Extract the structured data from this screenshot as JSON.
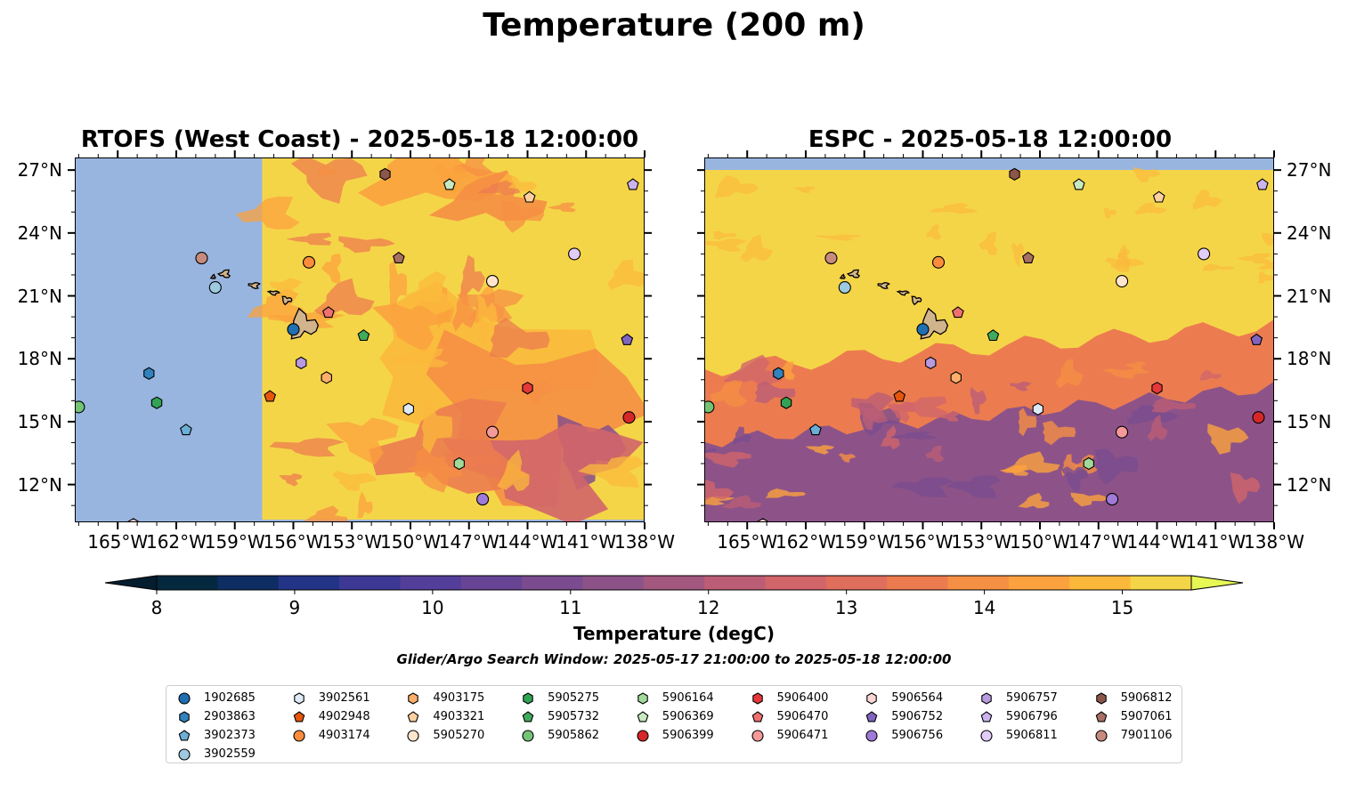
{
  "figure": {
    "title": "Temperature (200 m)",
    "window_text": "Glider/Argo Search Window: 2025-05-17 21:00:00 to 2025-05-18 12:00:00"
  },
  "panels": [
    {
      "title": "RTOFS (West Coast) - 2025-05-18 12:00:00",
      "model": "RTOFS"
    },
    {
      "title": "ESPC - 2025-05-18 12:00:00",
      "model": "ESPC"
    }
  ],
  "map_extent": {
    "lon": [
      -167.2,
      -138.0
    ],
    "lat": [
      10.2,
      27.6
    ]
  },
  "axes": {
    "lon_ticks": [
      "165°W",
      "162°W",
      "159°W",
      "156°W",
      "153°W",
      "150°W",
      "147°W",
      "144°W",
      "141°W",
      "138°W"
    ],
    "lon_values": [
      -165,
      -162,
      -159,
      -156,
      -153,
      -150,
      -147,
      -144,
      -141,
      -138
    ],
    "lat_ticks": [
      "27°N",
      "24°N",
      "21°N",
      "18°N",
      "15°N",
      "12°N"
    ],
    "lat_values": [
      27,
      24,
      21,
      18,
      15,
      12
    ]
  },
  "colorbar": {
    "label": "Temperature (degC)",
    "ticks": [
      "8",
      "9",
      "10",
      "11",
      "12",
      "13",
      "14",
      "15"
    ],
    "tick_values": [
      8,
      9,
      10,
      11,
      12,
      13,
      14,
      15
    ],
    "range": [
      8,
      15.5
    ],
    "colors": [
      "#04293f",
      "#0d2d63",
      "#233487",
      "#3c3893",
      "#533f99",
      "#684594",
      "#7a4c8f",
      "#8d5388",
      "#a3587f",
      "#bb5e75",
      "#d1656a",
      "#e06e5d",
      "#ec7c4f",
      "#f58f44",
      "#fba23e",
      "#fbb93c",
      "#f5d548"
    ],
    "extend_low": "#041e30",
    "extend_high": "#e7f855",
    "land_color": "#d2b48c",
    "nodata_color": "#98b5e0"
  },
  "legend": {
    "entries": [
      {
        "id": "1902685",
        "marker": "circle",
        "color": "#1f6fb2"
      },
      {
        "id": "2903863",
        "marker": "hexagon",
        "color": "#3182bd"
      },
      {
        "id": "3902373",
        "marker": "pentagon",
        "color": "#6baed6"
      },
      {
        "id": "3902559",
        "marker": "circle",
        "color": "#9ecae1"
      },
      {
        "id": "3902561",
        "marker": "hexagon",
        "color": "#deebf7"
      },
      {
        "id": "4902948",
        "marker": "pentagon",
        "color": "#e6550d"
      },
      {
        "id": "4903174",
        "marker": "circle",
        "color": "#fd8d3c"
      },
      {
        "id": "4903175",
        "marker": "hexagon",
        "color": "#fdae6b"
      },
      {
        "id": "4903321",
        "marker": "pentagon",
        "color": "#fdd0a2"
      },
      {
        "id": "5905270",
        "marker": "circle",
        "color": "#fee6ce"
      },
      {
        "id": "5905275",
        "marker": "hexagon",
        "color": "#31a354"
      },
      {
        "id": "5905732",
        "marker": "pentagon",
        "color": "#41ab5d"
      },
      {
        "id": "5905862",
        "marker": "circle",
        "color": "#74c476"
      },
      {
        "id": "5906164",
        "marker": "hexagon",
        "color": "#a1d99b"
      },
      {
        "id": "5906369",
        "marker": "pentagon",
        "color": "#c7e9c0"
      },
      {
        "id": "5906399",
        "marker": "circle",
        "color": "#d62728"
      },
      {
        "id": "5906400",
        "marker": "hexagon",
        "color": "#e6383a"
      },
      {
        "id": "5906470",
        "marker": "pentagon",
        "color": "#f07070"
      },
      {
        "id": "5906471",
        "marker": "circle",
        "color": "#f59a9a"
      },
      {
        "id": "5906564",
        "marker": "hexagon",
        "color": "#fcd5d5"
      },
      {
        "id": "5906752",
        "marker": "pentagon",
        "color": "#8065c0"
      },
      {
        "id": "5906756",
        "marker": "circle",
        "color": "#a07ad8"
      },
      {
        "id": "5906757",
        "marker": "hexagon",
        "color": "#b79ae0"
      },
      {
        "id": "5906796",
        "marker": "pentagon",
        "color": "#cbb4ee"
      },
      {
        "id": "5906811",
        "marker": "circle",
        "color": "#e2ccf8"
      },
      {
        "id": "5906812",
        "marker": "hexagon",
        "color": "#8c564b"
      },
      {
        "id": "5907061",
        "marker": "pentagon",
        "color": "#a87064"
      },
      {
        "id": "7901106",
        "marker": "circle",
        "color": "#c78b7e"
      }
    ]
  },
  "floats": [
    {
      "id": "1902685",
      "lon": -156.0,
      "lat": 19.4
    },
    {
      "id": "2903863",
      "lon": -163.4,
      "lat": 17.3
    },
    {
      "id": "3902373",
      "lon": -161.5,
      "lat": 14.6
    },
    {
      "id": "3902559",
      "lon": -160.0,
      "lat": 21.4
    },
    {
      "id": "3902561",
      "lon": -150.1,
      "lat": 15.6
    },
    {
      "id": "4902948",
      "lon": -157.2,
      "lat": 16.2
    },
    {
      "id": "4903174",
      "lon": -155.2,
      "lat": 22.6
    },
    {
      "id": "4903175",
      "lon": -154.3,
      "lat": 17.1
    },
    {
      "id": "4903321",
      "lon": -143.9,
      "lat": 25.7
    },
    {
      "id": "5905270",
      "lon": -145.8,
      "lat": 21.7
    },
    {
      "id": "5905275",
      "lon": -163.0,
      "lat": 15.9
    },
    {
      "id": "5905732",
      "lon": -152.4,
      "lat": 19.1
    },
    {
      "id": "5905862",
      "lon": -167.0,
      "lat": 15.7
    },
    {
      "id": "5906164",
      "lon": -147.5,
      "lat": 13.0
    },
    {
      "id": "5906369",
      "lon": -148.0,
      "lat": 26.3
    },
    {
      "id": "5906399",
      "lon": -138.8,
      "lat": 15.2
    },
    {
      "id": "5906400",
      "lon": -144.0,
      "lat": 16.6
    },
    {
      "id": "5906470",
      "lon": -154.2,
      "lat": 20.2
    },
    {
      "id": "5906471",
      "lon": -145.8,
      "lat": 14.5
    },
    {
      "id": "5906564",
      "lon": -164.2,
      "lat": 10.1
    },
    {
      "id": "5906752",
      "lon": -138.9,
      "lat": 18.9
    },
    {
      "id": "5906756",
      "lon": -146.3,
      "lat": 11.3
    },
    {
      "id": "5906757",
      "lon": -155.6,
      "lat": 17.8
    },
    {
      "id": "5906796",
      "lon": -138.6,
      "lat": 26.3
    },
    {
      "id": "5906811",
      "lon": -141.6,
      "lat": 23.0
    },
    {
      "id": "5906812",
      "lon": -151.3,
      "lat": 26.8
    },
    {
      "id": "5907061",
      "lon": -150.6,
      "lat": 22.8
    },
    {
      "id": "7901106",
      "lon": -160.7,
      "lat": 22.8
    }
  ]
}
